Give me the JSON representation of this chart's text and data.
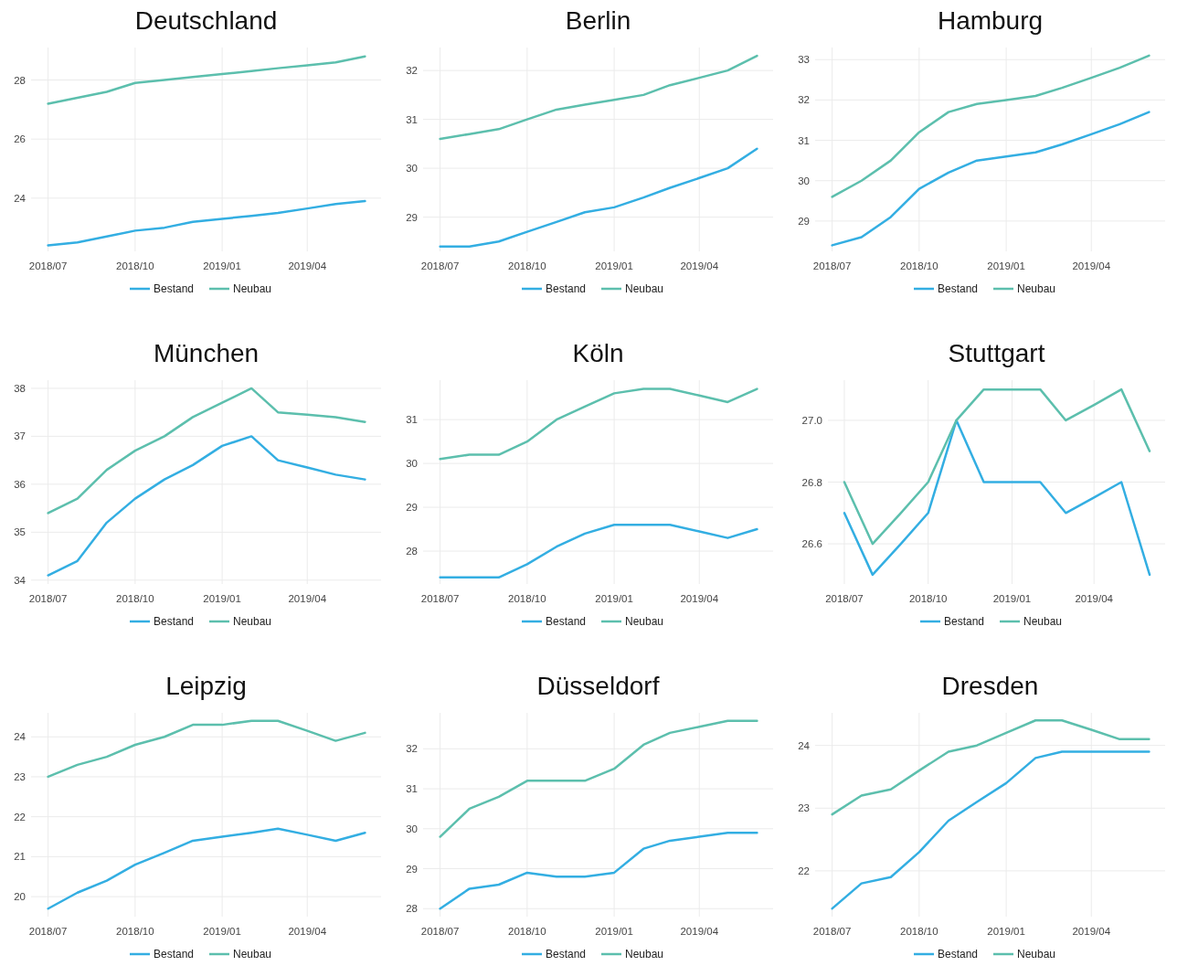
{
  "chart_data": [
    {
      "type": "line",
      "title": "Deutschland",
      "x": [
        "2018-07",
        "2018-08",
        "2018-09",
        "2018-10",
        "2018-11",
        "2018-12",
        "2019-01",
        "2019-02",
        "2019-03",
        "2019-04",
        "2019-05",
        "2019-06"
      ],
      "xlim": [
        "2018-06-13",
        "2019-06-18"
      ],
      "xticks": [
        {
          "value": "2018-07",
          "label": "2018/07"
        },
        {
          "value": "2018-10",
          "label": "2018/10"
        },
        {
          "value": "2019-01",
          "label": "2019/01"
        },
        {
          "value": "2019-04",
          "label": "2019/04"
        }
      ],
      "ylim": [
        22.2,
        29.1
      ],
      "yticks": [
        24,
        26,
        28
      ],
      "grid": true,
      "legend": "bottom",
      "series": [
        {
          "name": "Bestand",
          "color": "#33aee2",
          "values": [
            22.4,
            22.5,
            22.7,
            22.9,
            23.0,
            23.2,
            23.3,
            23.4,
            23.5,
            23.65,
            23.8,
            23.9
          ]
        },
        {
          "name": "Neubau",
          "color": "#5cbfad",
          "values": [
            27.2,
            27.4,
            27.6,
            27.9,
            28.0,
            28.1,
            28.2,
            28.3,
            28.4,
            28.5,
            28.6,
            28.8
          ]
        }
      ]
    },
    {
      "type": "line",
      "title": "Berlin",
      "x": [
        "2018-07",
        "2018-08",
        "2018-09",
        "2018-10",
        "2018-11",
        "2018-12",
        "2019-01",
        "2019-02",
        "2019-03",
        "2019-04",
        "2019-05",
        "2019-06"
      ],
      "xlim": [
        "2018-06-13",
        "2019-06-18"
      ],
      "xticks": [
        {
          "value": "2018-07",
          "label": "2018/07"
        },
        {
          "value": "2018-10",
          "label": "2018/10"
        },
        {
          "value": "2019-01",
          "label": "2019/01"
        },
        {
          "value": "2019-04",
          "label": "2019/04"
        }
      ],
      "ylim": [
        28.3,
        32.47
      ],
      "yticks": [
        29,
        30,
        31,
        32
      ],
      "grid": true,
      "legend": "bottom",
      "series": [
        {
          "name": "Bestand",
          "color": "#33aee2",
          "values": [
            28.4,
            28.4,
            28.5,
            28.7,
            28.9,
            29.1,
            29.2,
            29.4,
            29.6,
            29.8,
            30.0,
            30.4
          ]
        },
        {
          "name": "Neubau",
          "color": "#5cbfad",
          "values": [
            30.6,
            30.7,
            30.8,
            31.0,
            31.2,
            31.3,
            31.4,
            31.5,
            31.7,
            31.85,
            32.0,
            32.3
          ]
        }
      ]
    },
    {
      "type": "line",
      "title": "Hamburg",
      "x": [
        "2018-07",
        "2018-08",
        "2018-09",
        "2018-10",
        "2018-11",
        "2018-12",
        "2019-01",
        "2019-02",
        "2019-03",
        "2019-04",
        "2019-05",
        "2019-06"
      ],
      "xlim": [
        "2018-06-13",
        "2019-06-18"
      ],
      "xticks": [
        {
          "value": "2018-07",
          "label": "2018/07"
        },
        {
          "value": "2018-10",
          "label": "2018/10"
        },
        {
          "value": "2019-01",
          "label": "2019/01"
        },
        {
          "value": "2019-04",
          "label": "2019/04"
        }
      ],
      "ylim": [
        28.25,
        33.3
      ],
      "yticks": [
        29,
        30,
        31,
        32,
        33
      ],
      "grid": true,
      "legend": "bottom",
      "series": [
        {
          "name": "Bestand",
          "color": "#33aee2",
          "values": [
            28.4,
            28.6,
            29.1,
            29.8,
            30.2,
            30.5,
            30.6,
            30.7,
            30.9,
            31.15,
            31.4,
            31.7
          ]
        },
        {
          "name": "Neubau",
          "color": "#5cbfad",
          "values": [
            29.6,
            30.0,
            30.5,
            31.2,
            31.7,
            31.9,
            32.0,
            32.1,
            32.3,
            32.55,
            32.8,
            33.1
          ]
        }
      ]
    },
    {
      "type": "line",
      "title": "München",
      "x": [
        "2018-07",
        "2018-08",
        "2018-09",
        "2018-10",
        "2018-11",
        "2018-12",
        "2019-01",
        "2019-02",
        "2019-03",
        "2019-04",
        "2019-05",
        "2019-06"
      ],
      "xlim": [
        "2018-06-13",
        "2019-06-18"
      ],
      "xticks": [
        {
          "value": "2018-07",
          "label": "2018/07"
        },
        {
          "value": "2018-10",
          "label": "2018/10"
        },
        {
          "value": "2019-01",
          "label": "2019/01"
        },
        {
          "value": "2019-04",
          "label": "2019/04"
        }
      ],
      "ylim": [
        33.92,
        38.17
      ],
      "yticks": [
        34,
        35,
        36,
        37,
        38
      ],
      "grid": true,
      "legend": "bottom",
      "series": [
        {
          "name": "Bestand",
          "color": "#33aee2",
          "values": [
            34.1,
            34.4,
            35.2,
            35.7,
            36.1,
            36.4,
            36.8,
            37.0,
            36.5,
            36.35,
            36.2,
            36.1
          ]
        },
        {
          "name": "Neubau",
          "color": "#5cbfad",
          "values": [
            35.4,
            35.7,
            36.3,
            36.7,
            37.0,
            37.4,
            37.7,
            38.0,
            37.5,
            37.45,
            37.4,
            37.3
          ]
        }
      ]
    },
    {
      "type": "line",
      "title": "Köln",
      "x": [
        "2018-07",
        "2018-08",
        "2018-09",
        "2018-10",
        "2018-11",
        "2018-12",
        "2019-01",
        "2019-02",
        "2019-03",
        "2019-04",
        "2019-05",
        "2019-06"
      ],
      "xlim": [
        "2018-06-13",
        "2019-06-18"
      ],
      "xticks": [
        {
          "value": "2018-07",
          "label": "2018/07"
        },
        {
          "value": "2018-10",
          "label": "2018/10"
        },
        {
          "value": "2019-01",
          "label": "2019/01"
        },
        {
          "value": "2019-04",
          "label": "2019/04"
        }
      ],
      "ylim": [
        27.25,
        31.9
      ],
      "yticks": [
        28,
        29,
        30,
        31
      ],
      "grid": true,
      "legend": "bottom",
      "series": [
        {
          "name": "Bestand",
          "color": "#33aee2",
          "values": [
            27.4,
            27.4,
            27.4,
            27.7,
            28.1,
            28.4,
            28.6,
            28.6,
            28.6,
            28.45,
            28.3,
            28.5
          ]
        },
        {
          "name": "Neubau",
          "color": "#5cbfad",
          "values": [
            30.1,
            30.2,
            30.2,
            30.5,
            31.0,
            31.3,
            31.6,
            31.7,
            31.7,
            31.55,
            31.4,
            31.7
          ]
        }
      ]
    },
    {
      "type": "line",
      "title": "Stuttgart",
      "x": [
        "2018-07",
        "2018-08",
        "2018-09",
        "2018-10",
        "2018-11",
        "2018-12",
        "2019-01",
        "2019-02",
        "2019-03",
        "2019-04",
        "2019-05",
        "2019-06"
      ],
      "xlim": [
        "2018-06-13",
        "2019-06-18"
      ],
      "xticks": [
        {
          "value": "2018-07",
          "label": "2018/07"
        },
        {
          "value": "2018-10",
          "label": "2018/10"
        },
        {
          "value": "2019-01",
          "label": "2019/01"
        },
        {
          "value": "2019-04",
          "label": "2019/04"
        }
      ],
      "ylim": [
        26.47,
        27.13
      ],
      "yticks": [
        {
          "value": 26.6,
          "label": "26.6"
        },
        {
          "value": 26.8,
          "label": "26.8"
        },
        {
          "value": 27,
          "label": "27.0"
        }
      ],
      "grid": true,
      "legend": "bottom",
      "series": [
        {
          "name": "Bestand",
          "color": "#33aee2",
          "values": [
            26.7,
            26.5,
            26.6,
            26.7,
            27.0,
            26.8,
            26.8,
            26.8,
            26.7,
            26.75,
            26.8,
            26.5
          ]
        },
        {
          "name": "Neubau",
          "color": "#5cbfad",
          "values": [
            26.8,
            26.6,
            26.7,
            26.8,
            27.0,
            27.1,
            27.1,
            27.1,
            27.0,
            27.05,
            27.1,
            26.9
          ]
        }
      ]
    },
    {
      "type": "line",
      "title": "Leipzig",
      "x": [
        "2018-07",
        "2018-08",
        "2018-09",
        "2018-10",
        "2018-11",
        "2018-12",
        "2019-01",
        "2019-02",
        "2019-03",
        "2019-04",
        "2019-05",
        "2019-06"
      ],
      "xlim": [
        "2018-06-13",
        "2019-06-18"
      ],
      "xticks": [
        {
          "value": "2018-07",
          "label": "2018/07"
        },
        {
          "value": "2018-10",
          "label": "2018/10"
        },
        {
          "value": "2019-01",
          "label": "2019/01"
        },
        {
          "value": "2019-04",
          "label": "2019/04"
        }
      ],
      "ylim": [
        19.5,
        24.6
      ],
      "yticks": [
        20,
        21,
        22,
        23,
        24
      ],
      "grid": true,
      "legend": "bottom",
      "series": [
        {
          "name": "Bestand",
          "color": "#33aee2",
          "values": [
            19.7,
            20.1,
            20.4,
            20.8,
            21.1,
            21.4,
            21.5,
            21.6,
            21.7,
            21.55,
            21.4,
            21.6
          ]
        },
        {
          "name": "Neubau",
          "color": "#5cbfad",
          "values": [
            23.0,
            23.3,
            23.5,
            23.8,
            24.0,
            24.3,
            24.3,
            24.4,
            24.4,
            24.15,
            23.9,
            24.1
          ]
        }
      ]
    },
    {
      "type": "line",
      "title": "Düsseldorf",
      "x": [
        "2018-07",
        "2018-08",
        "2018-09",
        "2018-10",
        "2018-11",
        "2018-12",
        "2019-01",
        "2019-02",
        "2019-03",
        "2019-04",
        "2019-05",
        "2019-06"
      ],
      "xlim": [
        "2018-06-13",
        "2019-06-18"
      ],
      "xticks": [
        {
          "value": "2018-07",
          "label": "2018/07"
        },
        {
          "value": "2018-10",
          "label": "2018/10"
        },
        {
          "value": "2019-01",
          "label": "2019/01"
        },
        {
          "value": "2019-04",
          "label": "2019/04"
        }
      ],
      "ylim": [
        27.8,
        32.9
      ],
      "yticks": [
        28,
        29,
        30,
        31,
        32
      ],
      "grid": true,
      "legend": "bottom",
      "series": [
        {
          "name": "Bestand",
          "color": "#33aee2",
          "values": [
            28.0,
            28.5,
            28.6,
            28.9,
            28.8,
            28.8,
            28.9,
            29.5,
            29.7,
            29.8,
            29.9,
            29.9
          ]
        },
        {
          "name": "Neubau",
          "color": "#5cbfad",
          "values": [
            29.8,
            30.5,
            30.8,
            31.2,
            31.2,
            31.2,
            31.5,
            32.1,
            32.4,
            32.55,
            32.7,
            32.7
          ]
        }
      ]
    },
    {
      "type": "line",
      "title": "Dresden",
      "x": [
        "2018-07",
        "2018-08",
        "2018-09",
        "2018-10",
        "2018-11",
        "2018-12",
        "2019-01",
        "2019-02",
        "2019-03",
        "2019-04",
        "2019-05",
        "2019-06"
      ],
      "xlim": [
        "2018-06-13",
        "2019-06-18"
      ],
      "xticks": [
        {
          "value": "2018-07",
          "label": "2018/07"
        },
        {
          "value": "2018-10",
          "label": "2018/10"
        },
        {
          "value": "2019-01",
          "label": "2019/01"
        },
        {
          "value": "2019-04",
          "label": "2019/04"
        }
      ],
      "ylim": [
        21.27,
        24.52
      ],
      "yticks": [
        22,
        23,
        24
      ],
      "grid": true,
      "legend": "bottom",
      "series": [
        {
          "name": "Bestand",
          "color": "#33aee2",
          "values": [
            21.4,
            21.8,
            21.9,
            22.3,
            22.8,
            23.1,
            23.4,
            23.8,
            23.9,
            23.9,
            23.9,
            23.9
          ]
        },
        {
          "name": "Neubau",
          "color": "#5cbfad",
          "values": [
            22.9,
            23.2,
            23.3,
            23.6,
            23.9,
            24.0,
            24.2,
            24.4,
            24.4,
            24.25,
            24.1,
            24.1
          ]
        }
      ]
    }
  ]
}
